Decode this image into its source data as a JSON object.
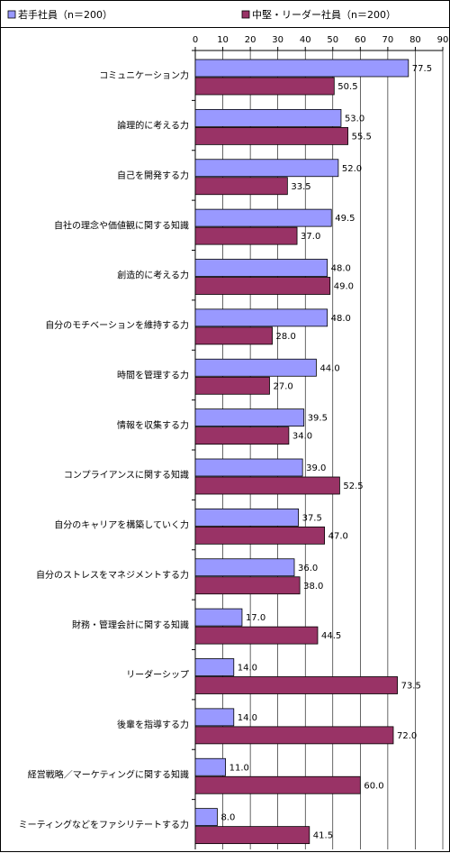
{
  "chart_data": {
    "type": "bar",
    "orientation": "horizontal",
    "categories": [
      "コミュニケーション力",
      "論理的に考える力",
      "自己を開発する力",
      "自社の理念や価値観に関する知識",
      "創造的に考える力",
      "自分のモチベーションを維持する力",
      "時間を管理する力",
      "情報を収集する力",
      "コンプライアンスに関する知識",
      "自分のキャリアを構築していく力",
      "自分のストレスをマネジメントする力",
      "財務・管理会計に関する知識",
      "リーダーシップ",
      "後輩を指導する力",
      "経営戦略／マーケティングに関する知識",
      "ミーティングなどをファシリテートする力"
    ],
    "series": [
      {
        "name": "若手社員（n＝200）",
        "color": "#9999ff",
        "values": [
          77.5,
          53.0,
          52.0,
          49.5,
          48.0,
          48.0,
          44.0,
          39.5,
          39.0,
          37.5,
          36.0,
          17.0,
          14.0,
          14.0,
          11.0,
          8.0
        ],
        "labels": [
          "77.5",
          "53.0",
          "52.0",
          "49.5",
          "48.0",
          "48.0",
          "44.0",
          "39.5",
          "39.0",
          "37.5",
          "36.0",
          "17.0",
          "14.0",
          "14.0",
          "11.0",
          "8.0"
        ]
      },
      {
        "name": "中堅・リーダー社員（n＝200）",
        "color": "#993366",
        "values": [
          50.5,
          55.5,
          33.5,
          37.0,
          49.0,
          28.0,
          27.0,
          34.0,
          52.5,
          47.0,
          38.0,
          44.5,
          73.5,
          72.0,
          60.0,
          41.5
        ],
        "labels": [
          "50.5",
          "55.5",
          "33.5",
          "37.0",
          "49.0",
          "28.0",
          "27.0",
          "34.0",
          "52.5",
          "47.0",
          "38.0",
          "44.5",
          "73.5",
          "72.0",
          "60.0",
          "41.5"
        ]
      }
    ],
    "xlim": [
      0,
      90
    ],
    "ticks": [
      "0",
      "10",
      "20",
      "30",
      "40",
      "50",
      "60",
      "70",
      "80",
      "90"
    ],
    "grid": "vertical gridlines at each tick",
    "legend_position": "top",
    "axis_position": "top"
  }
}
